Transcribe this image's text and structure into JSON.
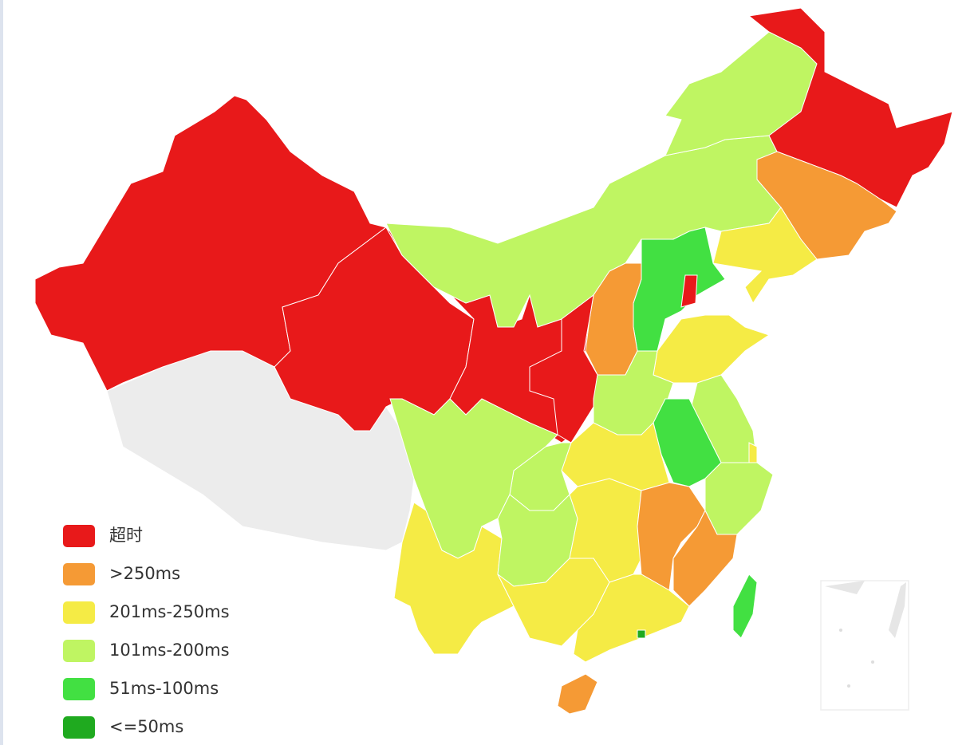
{
  "legend": {
    "items": [
      {
        "label": "超时",
        "color": "#e8191a"
      },
      {
        "label": ">250ms",
        "color": "#f59a35"
      },
      {
        "label": "201ms-250ms",
        "color": "#f5eb45"
      },
      {
        "label": "101ms-200ms",
        "color": "#bff562"
      },
      {
        "label": "51ms-100ms",
        "color": "#42e042"
      },
      {
        "label": "<=50ms",
        "color": "#1faa1f"
      }
    ]
  }
}
